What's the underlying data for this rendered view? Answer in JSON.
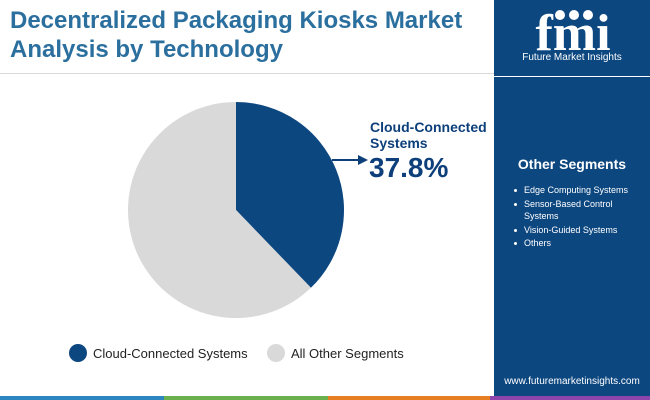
{
  "title_lines": [
    "Decentralized Packaging Kiosks Market",
    "Analysis by Technology"
  ],
  "logo": {
    "wordmark": "fmi",
    "caption": "Future Market Insights"
  },
  "colors": {
    "title": "#2b6f9e",
    "sidebar": "#0d4780",
    "primary_slice": "#0d4780",
    "secondary_slice": "#d9d9d9",
    "callout_text": "#0d3f7a",
    "bottom_bar": [
      "#2e86c1",
      "#6ab04c",
      "#e67e22",
      "#8e44ad"
    ]
  },
  "callout": {
    "label": "Cloud-Connected Systems",
    "value": "37.8%"
  },
  "other_segments": {
    "title": "Other Segments",
    "items": [
      "Edge Computing Systems",
      "Sensor-Based Control Systems",
      "Vision-Guided Systems",
      "Others"
    ]
  },
  "website": "www.futuremarketinsights.com",
  "chart_data": {
    "type": "pie",
    "title": "Decentralized Packaging Kiosks Market Analysis by Technology",
    "start_angle": "12 o'clock, clockwise",
    "legend_position": "bottom",
    "slices": [
      {
        "label": "Cloud-Connected Systems",
        "value": 37.8,
        "color": "#0d4780"
      },
      {
        "label": "All Other Segments",
        "value": 62.2,
        "color": "#d9d9d9"
      }
    ],
    "annotations": [
      {
        "label": "Cloud-Connected Systems",
        "value_text": "37.8%"
      }
    ]
  }
}
